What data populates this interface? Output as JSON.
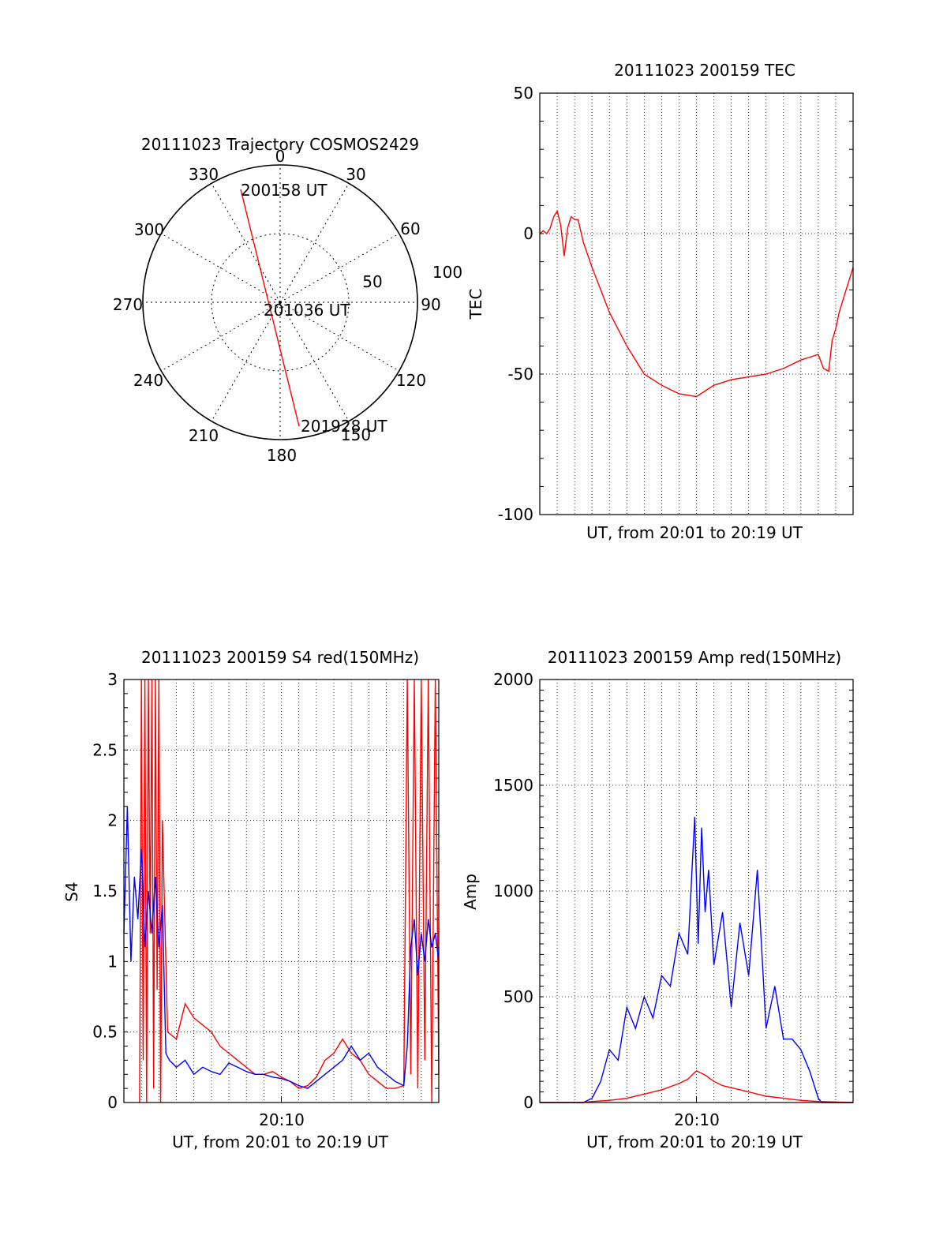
{
  "colors": {
    "red": "#ff0000",
    "blue": "#0000ff",
    "axis": "#000000"
  },
  "chart_data": [
    {
      "id": "polar",
      "type": "polar-trajectory",
      "title": "20111023 Trajectory COSMOS2429",
      "angle_labels": [
        "0",
        "30",
        "60",
        "90",
        "120",
        "150",
        "180",
        "210",
        "240",
        "270",
        "300",
        "330"
      ],
      "radial_labels": [
        "50",
        "100"
      ],
      "trajectory": [
        {
          "az": 333,
          "el": 22,
          "label": "200158 UT"
        },
        {
          "az": 170,
          "el": 82,
          "label": "201036 UT"
        },
        {
          "az": 172,
          "el": 18,
          "label": "201928 UT"
        }
      ]
    },
    {
      "id": "tec",
      "type": "line",
      "title": "20111023 200159 TEC",
      "xlabel": "UT, from 20:01 to 20:19 UT",
      "ylabel": "TEC",
      "xlim": [
        0,
        18
      ],
      "ylim": [
        -100,
        50
      ],
      "yticks": [
        "50",
        "0",
        "-50",
        "-100"
      ],
      "grid": true,
      "series": [
        {
          "color": "red",
          "x": [
            0,
            0.2,
            0.4,
            0.6,
            0.8,
            1.0,
            1.2,
            1.4,
            1.6,
            1.8,
            2.0,
            2.2,
            2.5,
            3.0,
            4.0,
            5.0,
            6.0,
            7.0,
            8.0,
            9.0,
            9.5,
            10.0,
            10.5,
            11.0,
            12.0,
            13.0,
            14.0,
            15.0,
            16.0,
            16.3,
            16.6,
            16.8,
            17.0,
            17.2,
            17.5,
            18.0
          ],
          "y": [
            0,
            1,
            0,
            2,
            6,
            8,
            3,
            -8,
            2,
            6,
            5,
            5,
            -3,
            -12,
            -28,
            -40,
            -50,
            -54,
            -57,
            -58,
            -56,
            -54,
            -53,
            -52,
            -51,
            -50,
            -48,
            -45,
            -43,
            -48,
            -49,
            -38,
            -34,
            -28,
            -22,
            -12
          ]
        }
      ]
    },
    {
      "id": "s4",
      "type": "line",
      "title": "20111023 200159 S4 red(150MHz)",
      "xlabel": "UT, from 20:01 to 20:19 UT",
      "ylabel": "S4",
      "xtick": "20:10",
      "xtick_pos": 9,
      "xlim": [
        0,
        18
      ],
      "ylim": [
        0,
        3
      ],
      "yticks": [
        "3",
        "2.5",
        "2",
        "1.5",
        "1",
        "0.5",
        "0"
      ],
      "grid": true,
      "series": [
        {
          "color": "red",
          "x": [
            0.9,
            1.0,
            1.1,
            1.2,
            1.3,
            1.4,
            1.5,
            1.6,
            1.7,
            1.8,
            1.9,
            2.0,
            2.1,
            2.2,
            2.5,
            3.0,
            3.5,
            4.0,
            4.5,
            5.0,
            5.5,
            6.0,
            6.5,
            7.0,
            7.5,
            8.0,
            8.5,
            9.0,
            9.5,
            10.0,
            10.5,
            11.0,
            11.5,
            12.0,
            12.5,
            13.0,
            13.5,
            14.0,
            14.5,
            15.0,
            15.5,
            16.0,
            16.2,
            16.4,
            16.6,
            16.8,
            17.0,
            17.2,
            17.4,
            17.6,
            17.8,
            18.0
          ],
          "y": [
            0.0,
            3.0,
            0.3,
            3.0,
            0.0,
            3.0,
            1.2,
            3.0,
            0.1,
            3.0,
            0.8,
            3.0,
            0.0,
            2.0,
            0.5,
            0.45,
            0.7,
            0.6,
            0.55,
            0.5,
            0.4,
            0.35,
            0.3,
            0.25,
            0.2,
            0.2,
            0.22,
            0.18,
            0.15,
            0.1,
            0.12,
            0.18,
            0.3,
            0.35,
            0.45,
            0.35,
            0.3,
            0.2,
            0.15,
            0.1,
            0.1,
            0.12,
            3.0,
            0.2,
            3.0,
            0.1,
            3.0,
            0.3,
            3.0,
            0.0,
            3.0,
            0.2
          ]
        },
        {
          "color": "blue",
          "x": [
            0,
            0.2,
            0.4,
            0.6,
            0.8,
            1.0,
            1.2,
            1.4,
            1.6,
            1.8,
            2.0,
            2.2,
            2.4,
            2.6,
            3.0,
            3.5,
            4.0,
            4.5,
            5.0,
            5.5,
            6.0,
            6.5,
            7.0,
            7.5,
            8.0,
            8.5,
            9.0,
            9.5,
            10.0,
            10.5,
            11.0,
            11.5,
            12.0,
            12.5,
            13.0,
            13.5,
            14.0,
            14.5,
            15.0,
            15.5,
            16.0,
            16.2,
            16.4,
            16.6,
            16.8,
            17.0,
            17.2,
            17.4,
            17.6,
            17.8,
            18.0
          ],
          "y": [
            1.2,
            2.1,
            1.0,
            1.6,
            1.3,
            1.8,
            1.1,
            1.5,
            1.2,
            1.6,
            1.1,
            1.4,
            0.35,
            0.3,
            0.25,
            0.3,
            0.2,
            0.25,
            0.22,
            0.2,
            0.28,
            0.25,
            0.22,
            0.2,
            0.2,
            0.18,
            0.17,
            0.15,
            0.12,
            0.1,
            0.15,
            0.2,
            0.25,
            0.3,
            0.4,
            0.3,
            0.35,
            0.25,
            0.2,
            0.15,
            0.12,
            0.4,
            1.1,
            1.3,
            0.9,
            1.2,
            1.0,
            1.3,
            1.1,
            1.2,
            1.0
          ]
        }
      ]
    },
    {
      "id": "amp",
      "type": "line",
      "title": "20111023 200159 Amp red(150MHz)",
      "xlabel": "UT, from 20:01 to 20:19 UT",
      "ylabel": "Amp",
      "xtick": "20:10",
      "xtick_pos": 9,
      "xlim": [
        0,
        18
      ],
      "ylim": [
        0,
        2000
      ],
      "yticks": [
        "2000",
        "1500",
        "1000",
        "500",
        "0"
      ],
      "grid": true,
      "series": [
        {
          "color": "blue",
          "x": [
            0,
            2.0,
            2.5,
            3.0,
            3.5,
            4.0,
            4.5,
            5.0,
            5.5,
            6.0,
            6.5,
            7.0,
            7.5,
            8.0,
            8.5,
            8.9,
            9.1,
            9.3,
            9.5,
            9.7,
            10.0,
            10.5,
            11.0,
            11.5,
            12.0,
            12.5,
            13.0,
            13.5,
            14.0,
            14.5,
            15.0,
            15.5,
            16.0,
            16.2,
            18.0
          ],
          "y": [
            0,
            0,
            0,
            20,
            100,
            250,
            200,
            450,
            350,
            500,
            400,
            600,
            550,
            800,
            700,
            1350,
            750,
            1300,
            900,
            1100,
            650,
            900,
            450,
            850,
            600,
            1100,
            350,
            550,
            300,
            300,
            250,
            150,
            20,
            0,
            0
          ]
        },
        {
          "color": "red",
          "x": [
            0,
            2.5,
            3.0,
            4.0,
            5.0,
            6.0,
            7.0,
            8.0,
            8.5,
            9.0,
            9.5,
            10.0,
            10.5,
            11.0,
            12.0,
            13.0,
            14.0,
            15.0,
            16.0,
            18.0
          ],
          "y": [
            0,
            0,
            5,
            10,
            20,
            40,
            60,
            90,
            110,
            150,
            130,
            100,
            80,
            70,
            50,
            30,
            20,
            10,
            5,
            0
          ]
        }
      ]
    }
  ]
}
